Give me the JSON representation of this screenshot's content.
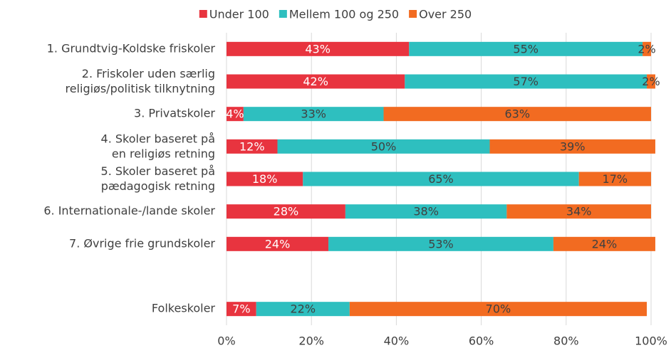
{
  "chart_data": {
    "type": "bar",
    "orientation": "horizontal",
    "stacked": true,
    "categories": [
      "1. Grundtvig-Koldske friskoler",
      "2. Friskoler uden særlig\nreligiøs/politisk tilknytning",
      "3. Privatskoler",
      "4. Skoler baseret på\nen religiøs retning",
      "5. Skoler baseret på\npædagogisk retning",
      "6. Internationale-/lande skoler",
      "7. Øvrige frie grundskoler",
      null,
      "Folkeskoler"
    ],
    "series": [
      {
        "name": "Under 100",
        "color": "#e8343f",
        "values": [
          43,
          42,
          4,
          12,
          18,
          28,
          24,
          null,
          7
        ],
        "value_labels": [
          "43%",
          "42%",
          "4%",
          "12%",
          "18%",
          "28%",
          "24%",
          null,
          "7%"
        ]
      },
      {
        "name": "Mellem 100 og 250",
        "color": "#2ebfbf",
        "values": [
          55,
          57,
          33,
          50,
          65,
          38,
          53,
          null,
          22
        ],
        "value_labels": [
          "55%",
          "57%",
          "33%",
          "50%",
          "65%",
          "38%",
          "53%",
          null,
          "22%"
        ]
      },
      {
        "name": "Over 250",
        "color": "#f26b21",
        "values": [
          2,
          2,
          63,
          39,
          17,
          34,
          24,
          null,
          70
        ],
        "value_labels": [
          "2%",
          "2%",
          "63%",
          "39%",
          "17%",
          "34%",
          "24%",
          null,
          "70%"
        ]
      }
    ],
    "xlim": [
      0,
      100
    ],
    "xticks": [
      {
        "value": 0,
        "label": "0%"
      },
      {
        "value": 20,
        "label": "20%"
      },
      {
        "value": 40,
        "label": "40%"
      },
      {
        "value": 60,
        "label": "60%"
      },
      {
        "value": 80,
        "label": "80%"
      },
      {
        "value": 100,
        "label": "100%"
      }
    ],
    "grid": true,
    "legend": "top"
  }
}
